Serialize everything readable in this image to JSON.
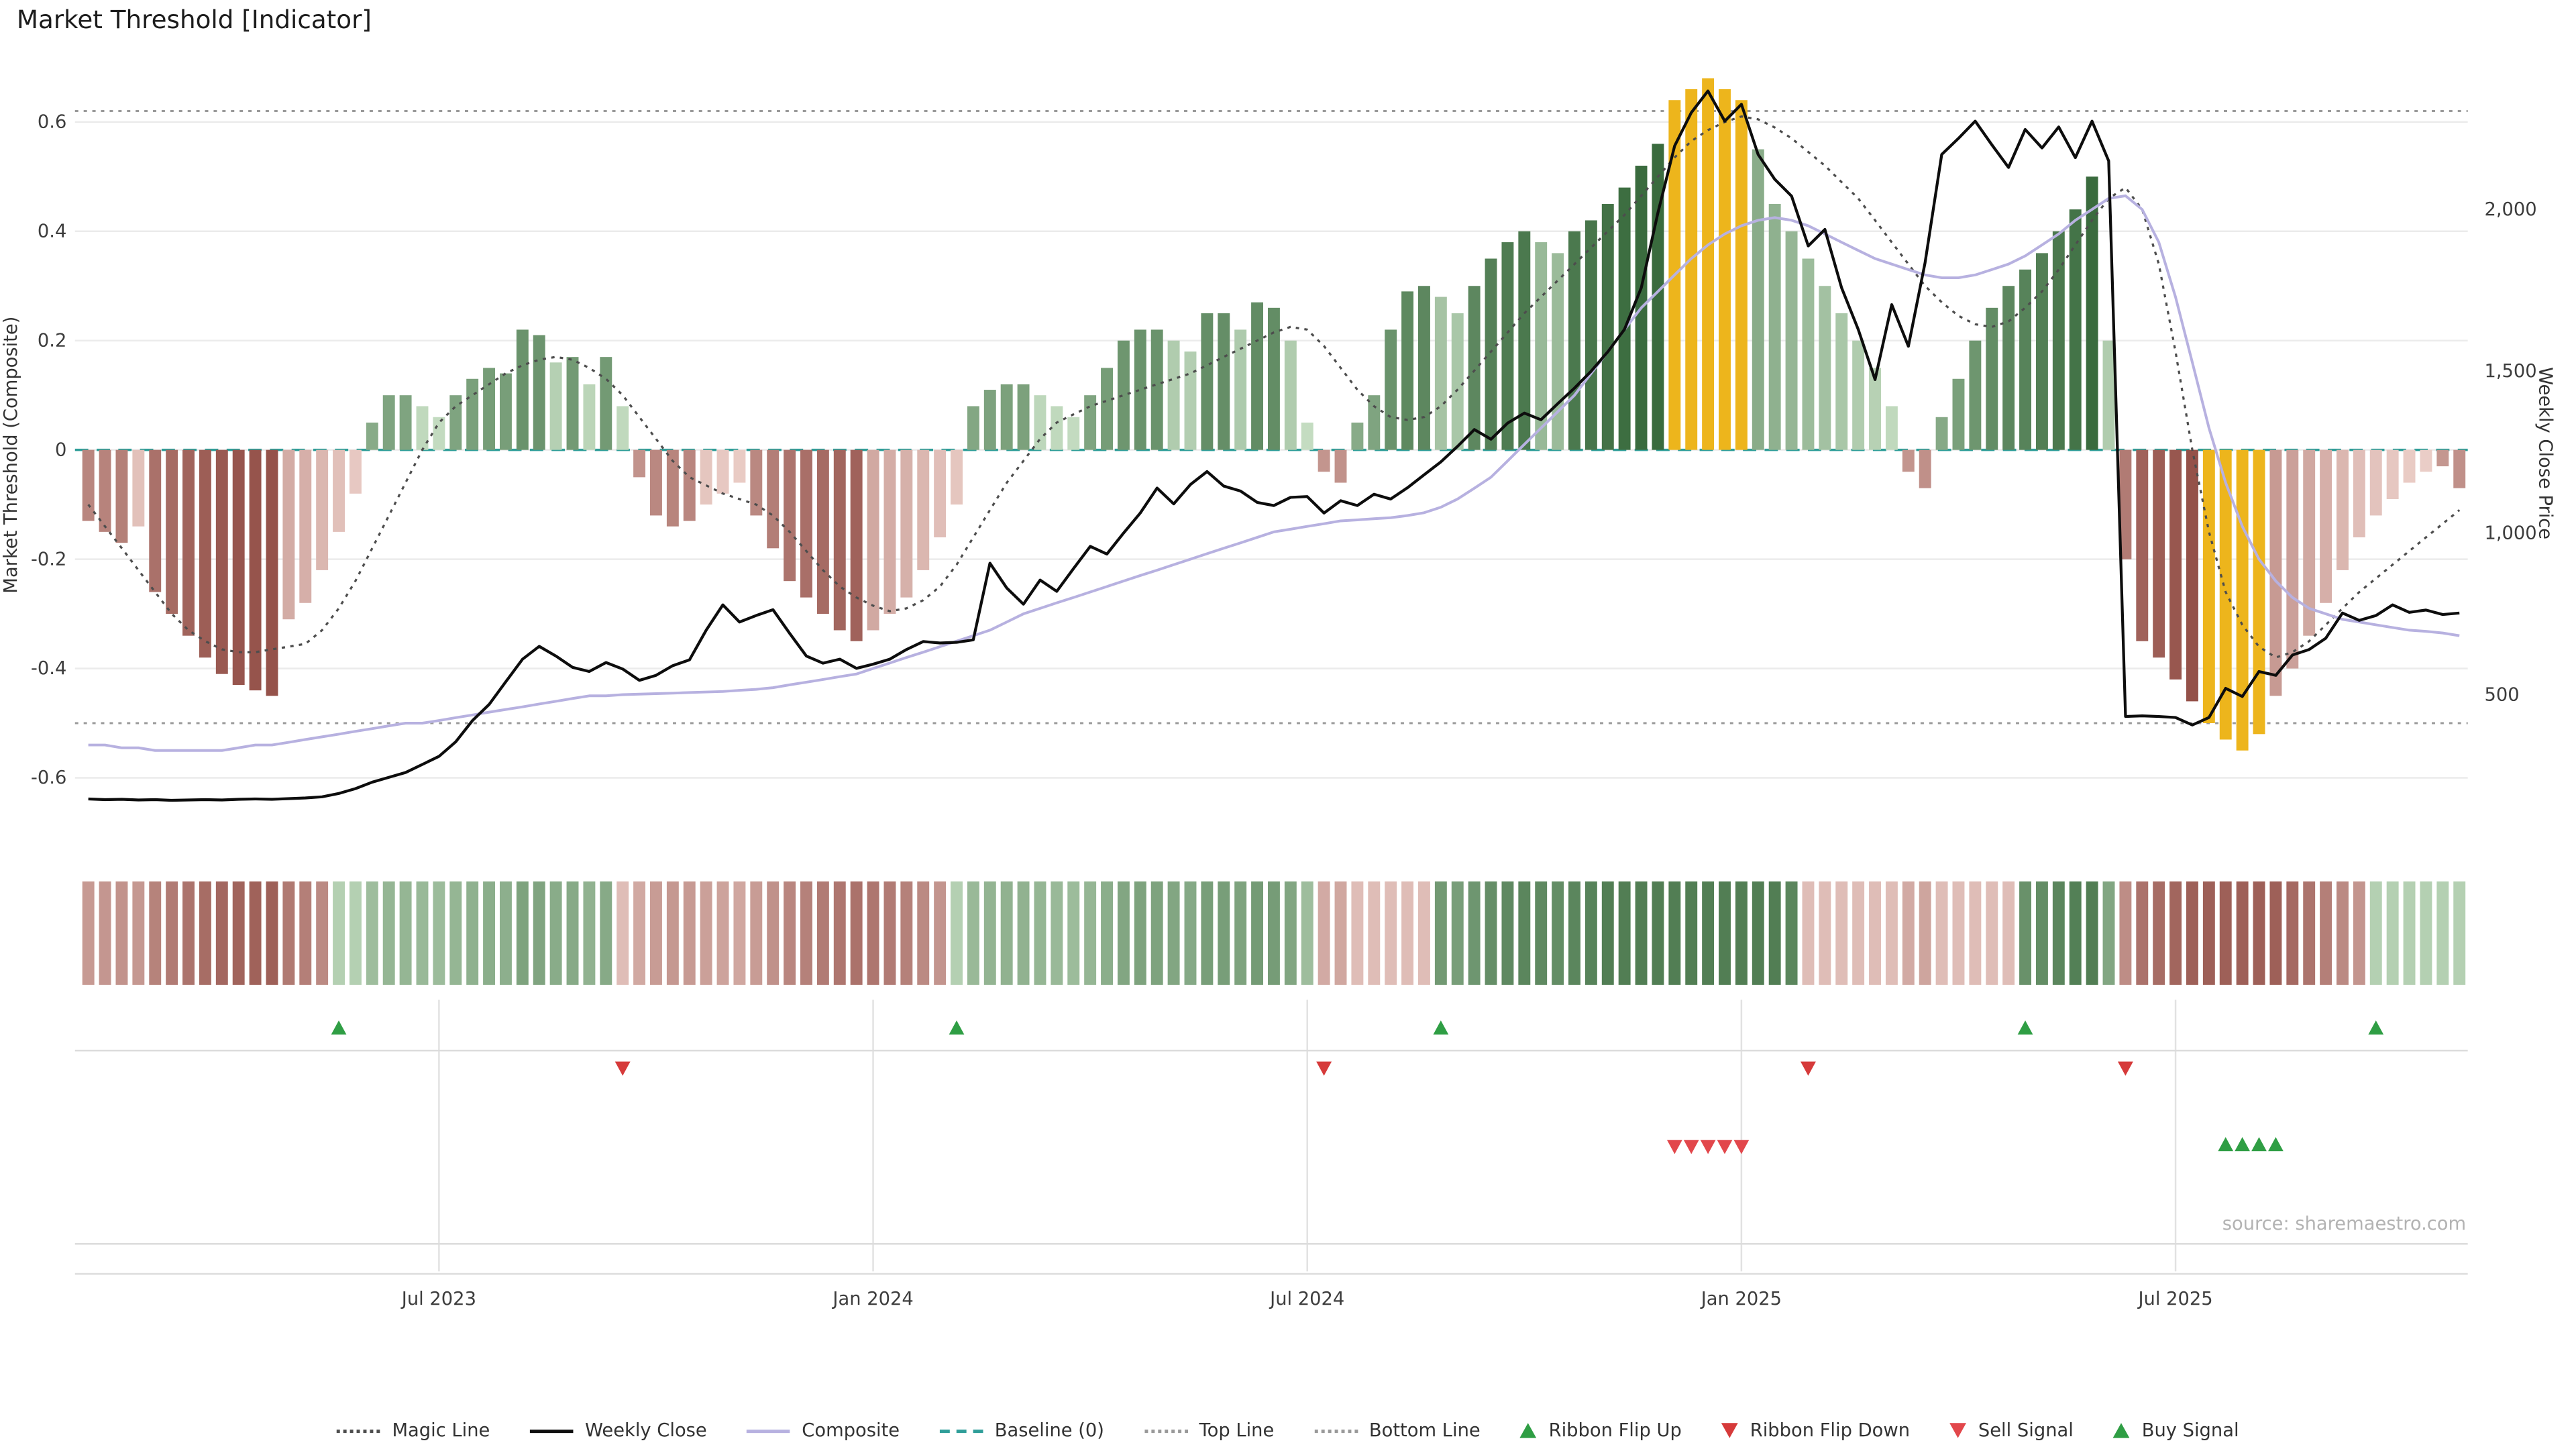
{
  "title": "Market Threshold [Indicator]",
  "source": "source: sharemaestro.com",
  "colors": {
    "gold": "#edb51c",
    "green_dark": "#3a6b3e",
    "green_light": "#d7ecd3",
    "red_dark": "#8f4a42",
    "red_light": "#f6ded8",
    "magic_line": "#4d4d4d",
    "weekly_close": "#0d0d0d",
    "composite": "#b7b1e0",
    "baseline": "#2f9e99",
    "threshold_line": "#9a9a9a",
    "grid": "#ebebeb",
    "grid_lower": "#e2e2e2",
    "separator": "#dcdcdc",
    "flip_up": "#2f9e44",
    "flip_down": "#d63a3a",
    "sell": "#e2474b",
    "buy": "#2f9e44",
    "axis_text": "#3d3d3d"
  },
  "chart_data": {
    "type": "bar",
    "title": "Market Threshold [Indicator]",
    "ylabel_left": "Market Threshold (Composite)",
    "ylabel_right": "Weekly Close Price",
    "ylim_left": [
      -0.72,
      0.72
    ],
    "grid": true,
    "legend_position": "bottom-center",
    "left_ticks": [
      {
        "v": 0.6,
        "label": "0.6"
      },
      {
        "v": 0.4,
        "label": "0.4"
      },
      {
        "v": 0.2,
        "label": "0.2"
      },
      {
        "v": 0.0,
        "label": "0"
      },
      {
        "v": -0.2,
        "label": "-0.2"
      },
      {
        "v": -0.4,
        "label": "-0.4"
      },
      {
        "v": -0.6,
        "label": "-0.6"
      }
    ],
    "right_ticks": [
      {
        "price": 2000,
        "label": "2,000"
      },
      {
        "price": 1500,
        "label": "1,500"
      },
      {
        "price": 1000,
        "label": "1,000"
      },
      {
        "price": 500,
        "label": "500"
      }
    ],
    "x_ticks": [
      {
        "index": 21,
        "label": "Jul 2023"
      },
      {
        "index": 47,
        "label": "Jan 2024"
      },
      {
        "index": 73,
        "label": "Jul 2024"
      },
      {
        "index": 99,
        "label": "Jan 2025"
      },
      {
        "index": 125,
        "label": "Jul 2025"
      }
    ],
    "top_line": 0.62,
    "bottom_line": -0.5,
    "baseline": 0,
    "threshold_bars": [
      -0.13,
      -0.15,
      -0.17,
      -0.14,
      -0.26,
      -0.3,
      -0.34,
      -0.38,
      -0.41,
      -0.43,
      -0.44,
      -0.45,
      -0.31,
      -0.28,
      -0.22,
      -0.15,
      -0.08,
      0.05,
      0.1,
      0.1,
      0.08,
      0.06,
      0.1,
      0.13,
      0.15,
      0.14,
      0.22,
      0.21,
      0.16,
      0.17,
      0.12,
      0.17,
      0.08,
      -0.05,
      -0.12,
      -0.14,
      -0.13,
      -0.1,
      -0.08,
      -0.06,
      -0.12,
      -0.18,
      -0.24,
      -0.27,
      -0.3,
      -0.33,
      -0.35,
      -0.33,
      -0.3,
      -0.27,
      -0.22,
      -0.16,
      -0.1,
      0.08,
      0.11,
      0.12,
      0.12,
      0.1,
      0.08,
      0.06,
      0.1,
      0.15,
      0.2,
      0.22,
      0.22,
      0.2,
      0.18,
      0.25,
      0.25,
      0.22,
      0.27,
      0.26,
      0.2,
      0.05,
      -0.04,
      -0.06,
      0.05,
      0.1,
      0.22,
      0.29,
      0.3,
      0.28,
      0.25,
      0.3,
      0.35,
      0.38,
      0.4,
      0.38,
      0.36,
      0.4,
      0.42,
      0.45,
      0.48,
      0.52,
      0.56,
      0.64,
      0.66,
      0.68,
      0.66,
      0.64,
      0.55,
      0.45,
      0.4,
      0.35,
      0.3,
      0.25,
      0.2,
      0.15,
      0.08,
      -0.04,
      -0.07,
      0.06,
      0.13,
      0.2,
      0.26,
      0.3,
      0.33,
      0.36,
      0.4,
      0.44,
      0.5,
      0.2,
      -0.2,
      -0.35,
      -0.38,
      -0.42,
      -0.46,
      -0.5,
      -0.53,
      -0.55,
      -0.52,
      -0.45,
      -0.4,
      -0.34,
      -0.28,
      -0.22,
      -0.16,
      -0.12,
      -0.09,
      -0.06,
      -0.04,
      -0.03,
      -0.07
    ],
    "magic_line": [
      -0.1,
      -0.14,
      -0.18,
      -0.22,
      -0.26,
      -0.3,
      -0.33,
      -0.35,
      -0.365,
      -0.37,
      -0.37,
      -0.365,
      -0.36,
      -0.355,
      -0.33,
      -0.29,
      -0.24,
      -0.18,
      -0.12,
      -0.06,
      0.0,
      0.05,
      0.08,
      0.1,
      0.12,
      0.14,
      0.155,
      0.165,
      0.17,
      0.165,
      0.15,
      0.13,
      0.1,
      0.06,
      0.02,
      -0.02,
      -0.05,
      -0.065,
      -0.08,
      -0.09,
      -0.1,
      -0.12,
      -0.15,
      -0.185,
      -0.22,
      -0.25,
      -0.27,
      -0.285,
      -0.295,
      -0.29,
      -0.275,
      -0.25,
      -0.21,
      -0.16,
      -0.11,
      -0.06,
      -0.02,
      0.02,
      0.05,
      0.065,
      0.08,
      0.09,
      0.1,
      0.11,
      0.12,
      0.13,
      0.14,
      0.155,
      0.17,
      0.185,
      0.2,
      0.215,
      0.225,
      0.22,
      0.19,
      0.15,
      0.11,
      0.08,
      0.06,
      0.055,
      0.06,
      0.08,
      0.11,
      0.145,
      0.18,
      0.215,
      0.25,
      0.28,
      0.31,
      0.34,
      0.37,
      0.4,
      0.43,
      0.465,
      0.5,
      0.535,
      0.565,
      0.585,
      0.6,
      0.61,
      0.605,
      0.59,
      0.57,
      0.545,
      0.52,
      0.49,
      0.46,
      0.42,
      0.38,
      0.34,
      0.3,
      0.27,
      0.245,
      0.23,
      0.225,
      0.235,
      0.26,
      0.29,
      0.33,
      0.375,
      0.42,
      0.46,
      0.48,
      0.44,
      0.34,
      0.18,
      0.0,
      -0.15,
      -0.26,
      -0.32,
      -0.36,
      -0.38,
      -0.37,
      -0.35,
      -0.32,
      -0.29,
      -0.26,
      -0.235,
      -0.21,
      -0.185,
      -0.16,
      -0.135,
      -0.11
    ],
    "composite": [
      -0.54,
      -0.54,
      -0.545,
      -0.545,
      -0.55,
      -0.55,
      -0.55,
      -0.55,
      -0.55,
      -0.545,
      -0.54,
      -0.54,
      -0.535,
      -0.53,
      -0.525,
      -0.52,
      -0.515,
      -0.51,
      -0.505,
      -0.5,
      -0.5,
      -0.495,
      -0.49,
      -0.485,
      -0.48,
      -0.475,
      -0.47,
      -0.465,
      -0.46,
      -0.455,
      -0.45,
      -0.45,
      -0.448,
      -0.447,
      -0.446,
      -0.445,
      -0.444,
      -0.443,
      -0.442,
      -0.44,
      -0.438,
      -0.435,
      -0.43,
      -0.425,
      -0.42,
      -0.415,
      -0.41,
      -0.4,
      -0.39,
      -0.38,
      -0.37,
      -0.36,
      -0.35,
      -0.34,
      -0.33,
      -0.315,
      -0.3,
      -0.29,
      -0.28,
      -0.27,
      -0.26,
      -0.25,
      -0.24,
      -0.23,
      -0.22,
      -0.21,
      -0.2,
      -0.19,
      -0.18,
      -0.17,
      -0.16,
      -0.15,
      -0.145,
      -0.14,
      -0.135,
      -0.13,
      -0.128,
      -0.126,
      -0.124,
      -0.12,
      -0.115,
      -0.105,
      -0.09,
      -0.07,
      -0.05,
      -0.02,
      0.01,
      0.04,
      0.07,
      0.1,
      0.14,
      0.18,
      0.22,
      0.26,
      0.29,
      0.32,
      0.35,
      0.375,
      0.395,
      0.41,
      0.42,
      0.425,
      0.42,
      0.41,
      0.395,
      0.38,
      0.365,
      0.35,
      0.34,
      0.33,
      0.32,
      0.315,
      0.315,
      0.32,
      0.33,
      0.34,
      0.355,
      0.375,
      0.395,
      0.42,
      0.44,
      0.46,
      0.465,
      0.44,
      0.38,
      0.28,
      0.16,
      0.04,
      -0.06,
      -0.14,
      -0.2,
      -0.24,
      -0.27,
      -0.29,
      -0.3,
      -0.31,
      -0.315,
      -0.32,
      -0.325,
      -0.33,
      -0.332,
      -0.335,
      -0.34
    ],
    "weekly_close": [
      178,
      176,
      177,
      175,
      176,
      174,
      175,
      176,
      175,
      177,
      178,
      177,
      179,
      181,
      185,
      195,
      210,
      230,
      245,
      260,
      285,
      310,
      355,
      420,
      470,
      540,
      610,
      650,
      620,
      585,
      572,
      600,
      580,
      545,
      560,
      590,
      608,
      700,
      778,
      725,
      745,
      763,
      690,
      620,
      598,
      610,
      582,
      595,
      610,
      640,
      665,
      660,
      662,
      670,
      907,
      830,
      780,
      855,
      820,
      890,
      959,
      935,
      1000,
      1062,
      1139,
      1090,
      1150,
      1190,
      1145,
      1130,
      1095,
      1085,
      1110,
      1113,
      1062,
      1100,
      1085,
      1120,
      1105,
      1140,
      1180,
      1220,
      1268,
      1320,
      1290,
      1340,
      1371,
      1350,
      1400,
      1448,
      1500,
      1560,
      1629,
      1758,
      1990,
      2196,
      2299,
      2366,
      2273,
      2325,
      2170,
      2093,
      2041,
      1887,
      1938,
      1758,
      1629,
      1474,
      1706,
      1577,
      1835,
      2170,
      2220,
      2273,
      2200,
      2130,
      2247,
      2190,
      2255,
      2160,
      2273,
      2150,
      433,
      435,
      433,
      430,
      407,
      430,
      520,
      495,
      572,
      560,
      623,
      640,
      675,
      753,
      730,
      745,
      778,
      755,
      762,
      748,
      753
    ],
    "ribbon_segments": [
      {
        "from": 0,
        "to": 14,
        "state": "red"
      },
      {
        "from": 15,
        "to": 31,
        "state": "green"
      },
      {
        "from": 32,
        "to": 51,
        "state": "red"
      },
      {
        "from": 52,
        "to": 73,
        "state": "green"
      },
      {
        "from": 74,
        "to": 80,
        "state": "red"
      },
      {
        "from": 81,
        "to": 102,
        "state": "green"
      },
      {
        "from": 103,
        "to": 115,
        "state": "red"
      },
      {
        "from": 116,
        "to": 121,
        "state": "green"
      },
      {
        "from": 122,
        "to": 136,
        "state": "red"
      },
      {
        "from": 137,
        "to": 142,
        "state": "green"
      }
    ],
    "signals": {
      "ribbon_flip_up": [
        15,
        52,
        81,
        116,
        137
      ],
      "ribbon_flip_down": [
        32,
        74,
        103,
        122
      ],
      "sell": [
        95,
        96,
        97,
        98,
        99
      ],
      "buy": [
        128,
        129,
        130,
        131
      ]
    },
    "legend": [
      {
        "label": "Magic Line",
        "marker": "dotted",
        "color": "#4d4d4d"
      },
      {
        "label": "Weekly Close",
        "marker": "solid",
        "color": "#0d0d0d"
      },
      {
        "label": "Composite",
        "marker": "solid",
        "color": "#b7b1e0"
      },
      {
        "label": "Baseline (0)",
        "marker": "dashed",
        "color": "#2f9e99"
      },
      {
        "label": "Top Line",
        "marker": "dotted",
        "color": "#999999"
      },
      {
        "label": "Bottom Line",
        "marker": "dotted",
        "color": "#999999"
      },
      {
        "label": "Ribbon Flip Up",
        "marker": "tri-up",
        "color": "#2f9e44"
      },
      {
        "label": "Ribbon Flip Down",
        "marker": "tri-down",
        "color": "#d63a3a"
      },
      {
        "label": "Sell Signal",
        "marker": "tri-down",
        "color": "#e2474b"
      },
      {
        "label": "Buy Signal",
        "marker": "tri-up",
        "color": "#2f9e44"
      }
    ]
  }
}
